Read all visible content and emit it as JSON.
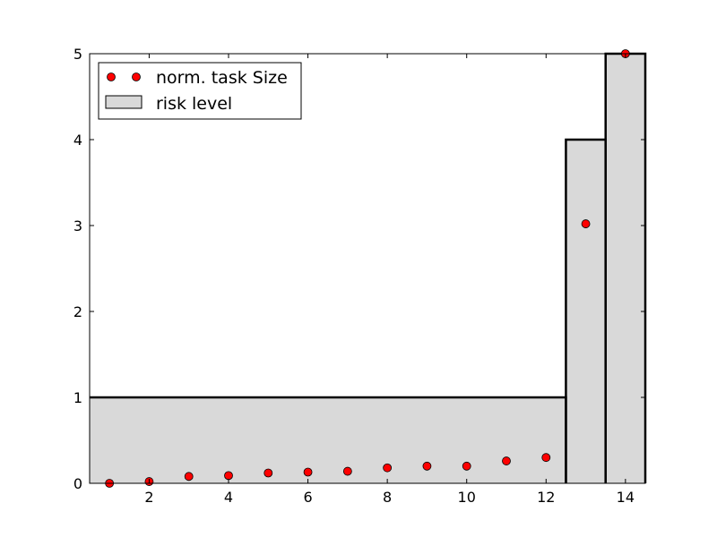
{
  "chart_data": {
    "type": "scatter",
    "title": "",
    "xlabel": "",
    "ylabel": "",
    "xlim": [
      0.5,
      14.5
    ],
    "ylim": [
      0,
      5
    ],
    "xticks": [
      2,
      4,
      6,
      8,
      10,
      12,
      14
    ],
    "yticks": [
      0,
      1,
      2,
      3,
      4,
      5
    ],
    "grid": false,
    "legend_position": "upper-left",
    "series": [
      {
        "name": "norm. task Size",
        "kind": "scatter",
        "color": "#ff0000",
        "x": [
          1,
          2,
          3,
          4,
          5,
          6,
          7,
          8,
          9,
          10,
          11,
          12,
          13,
          14
        ],
        "y": [
          0.0,
          0.02,
          0.08,
          0.09,
          0.12,
          0.13,
          0.14,
          0.18,
          0.2,
          0.2,
          0.26,
          0.3,
          3.02,
          5.0
        ]
      },
      {
        "name": "risk level",
        "kind": "bar",
        "color": "#d9d9d9",
        "edge_color": "#000000",
        "segments": [
          {
            "x_start": 0.5,
            "x_end": 12.5,
            "value": 1
          },
          {
            "x_start": 12.5,
            "x_end": 13.5,
            "value": 4
          },
          {
            "x_start": 13.5,
            "x_end": 14.5,
            "value": 5
          }
        ]
      }
    ]
  }
}
